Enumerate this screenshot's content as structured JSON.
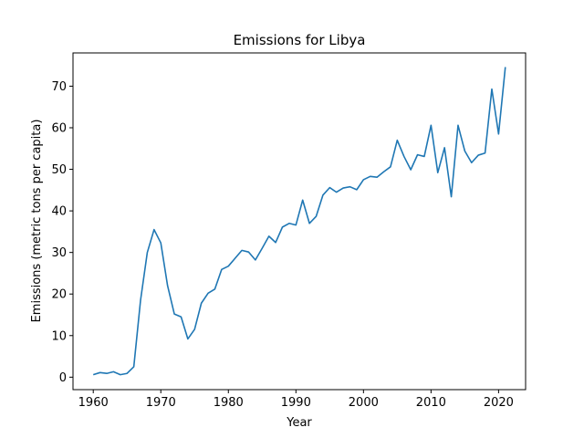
{
  "chart_data": {
    "type": "line",
    "title": "Emissions for Libya",
    "xlabel": "Year",
    "ylabel": "Emissions (metric tons per capita)",
    "xlim": [
      1957,
      2024
    ],
    "ylim": [
      -3,
      78
    ],
    "xticks": [
      1960,
      1970,
      1980,
      1990,
      2000,
      2010,
      2020
    ],
    "yticks": [
      0,
      10,
      20,
      30,
      40,
      50,
      60,
      70
    ],
    "grid": false,
    "series": [
      {
        "color": "#1f77b4",
        "x": [
          1960,
          1961,
          1962,
          1963,
          1964,
          1965,
          1966,
          1967,
          1968,
          1969,
          1970,
          1971,
          1972,
          1973,
          1974,
          1975,
          1976,
          1977,
          1978,
          1979,
          1980,
          1981,
          1982,
          1983,
          1984,
          1985,
          1986,
          1987,
          1988,
          1989,
          1990,
          1991,
          1992,
          1993,
          1994,
          1995,
          1996,
          1997,
          1998,
          1999,
          2000,
          2001,
          2002,
          2003,
          2004,
          2005,
          2006,
          2007,
          2008,
          2009,
          2010,
          2011,
          2012,
          2013,
          2014,
          2015,
          2016,
          2017,
          2018,
          2019,
          2020,
          2021
        ],
        "y": [
          0.6,
          1.1,
          0.9,
          1.3,
          0.6,
          0.9,
          2.5,
          18.5,
          30.0,
          35.5,
          32.3,
          22.0,
          15.2,
          14.5,
          9.2,
          11.5,
          17.8,
          20.2,
          21.2,
          25.9,
          26.7,
          28.6,
          30.5,
          30.1,
          28.2,
          31.0,
          33.9,
          32.4,
          36.1,
          37.0,
          36.6,
          42.6,
          37.0,
          38.7,
          43.8,
          45.6,
          44.5,
          45.5,
          45.8,
          45.1,
          47.5,
          48.3,
          48.1,
          49.4,
          50.6,
          57.0,
          53.1,
          49.9,
          53.5,
          53.1,
          60.6,
          49.2,
          55.2,
          43.4,
          60.6,
          54.4,
          51.6,
          53.4,
          53.9,
          69.3,
          58.5,
          74.6
        ]
      }
    ]
  }
}
